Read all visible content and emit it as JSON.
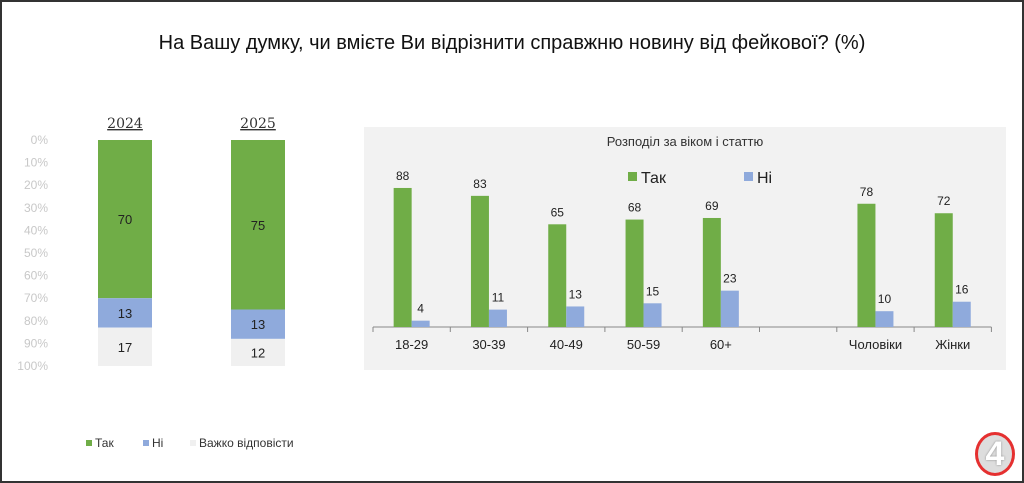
{
  "title": "На Вашу думку, чи вмієте Ви відрізнити справжню новину від фейкової? (%)",
  "colors": {
    "yes": "#70ad47",
    "no": "#8faadc",
    "hard": "#f0f0f0",
    "panel": "#f2f2f2"
  },
  "chart_data": [
    {
      "type": "bar",
      "stacked": true,
      "orientation": "vertical",
      "categories": [
        "2024",
        "2025"
      ],
      "y_ticks": [
        "0%",
        "10%",
        "20%",
        "30%",
        "40%",
        "50%",
        "60%",
        "70%",
        "80%",
        "90%",
        "100%"
      ],
      "ylim": [
        0,
        100
      ],
      "y_inverted": true,
      "series": [
        {
          "name": "Так",
          "values": [
            70,
            75
          ]
        },
        {
          "name": "Ні",
          "values": [
            13,
            13
          ]
        },
        {
          "name": "Важко відповісти",
          "values": [
            17,
            12
          ]
        }
      ],
      "legend": "bottom-left"
    },
    {
      "type": "bar",
      "title": "Розподіл за віком і статтю",
      "categories": [
        "18-29",
        "30-39",
        "40-49",
        "50-59",
        "60+",
        "",
        "Чоловіки",
        "Жінки"
      ],
      "series": [
        {
          "name": "Так",
          "values": [
            88,
            83,
            65,
            68,
            69,
            null,
            78,
            72
          ]
        },
        {
          "name": "Ні",
          "values": [
            4,
            11,
            13,
            15,
            23,
            null,
            10,
            16
          ]
        }
      ],
      "legend": "top-center",
      "grid": false
    }
  ]
}
